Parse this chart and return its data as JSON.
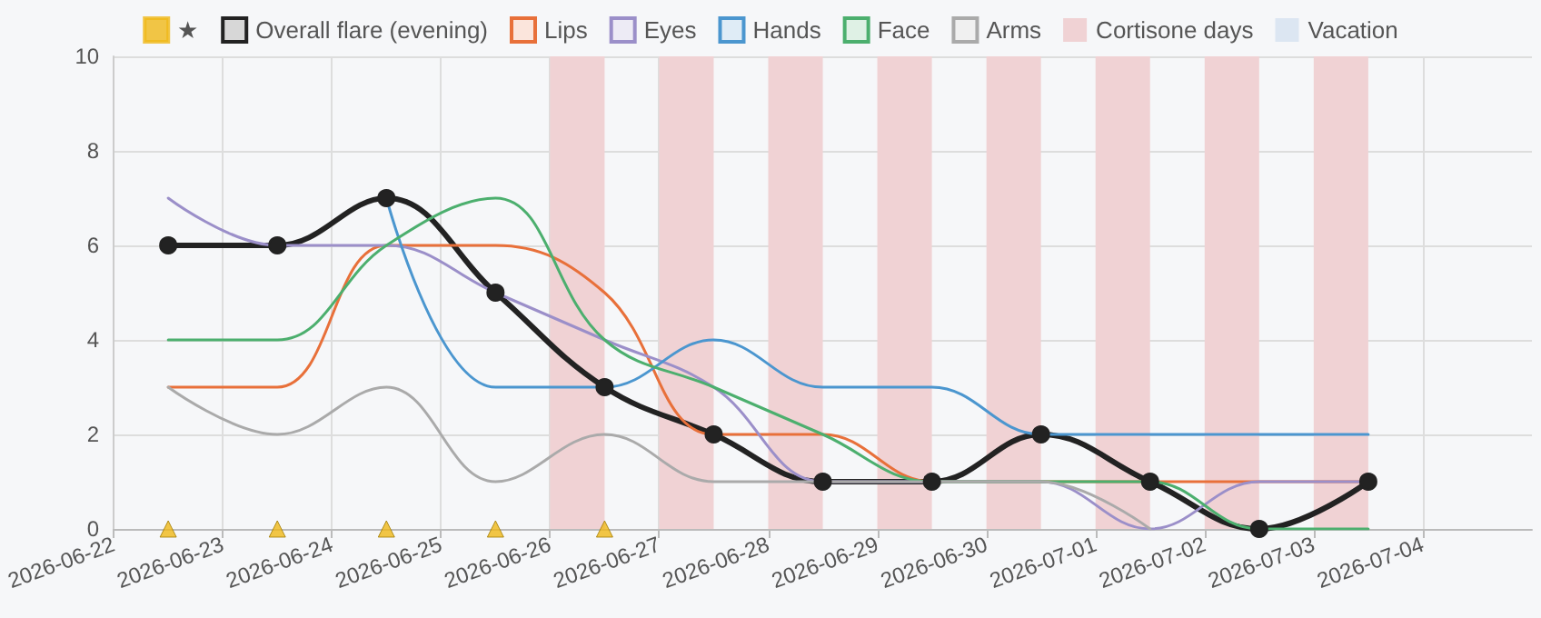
{
  "chart_data": {
    "type": "line",
    "x": [
      "2026-06-22T12:00",
      "2026-06-23T12:00",
      "2026-06-24T12:00",
      "2026-06-25T12:00",
      "2026-06-26T12:00",
      "2026-06-27T12:00",
      "2026-06-28T12:00",
      "2026-06-29T12:00",
      "2026-06-30T12:00",
      "2026-07-01T12:00",
      "2026-07-02T12:00",
      "2026-07-03T12:00"
    ],
    "series": [
      {
        "name": "★",
        "type": "scatter",
        "marker": "triangle",
        "color": "#f0b818",
        "values": [
          0,
          0,
          0,
          0,
          0,
          null,
          null,
          null,
          null,
          null,
          null,
          null
        ]
      },
      {
        "name": "Overall flare (evening)",
        "color": "#222222",
        "marker": "circle",
        "values": [
          6,
          6,
          7,
          5,
          3,
          2,
          1,
          1,
          2,
          1,
          0,
          1
        ]
      },
      {
        "name": "Lips",
        "color": "#e8703a",
        "values": [
          3,
          3,
          6,
          6,
          5,
          2,
          2,
          1,
          1,
          1,
          1,
          1
        ]
      },
      {
        "name": "Eyes",
        "color": "#9b8fc9",
        "values": [
          7,
          6,
          6,
          5,
          4,
          3,
          1,
          1,
          1,
          0,
          1,
          1
        ]
      },
      {
        "name": "Hands",
        "color": "#4b96cf",
        "values": [
          null,
          null,
          7,
          3,
          3,
          4,
          3,
          3,
          2,
          2,
          2,
          2
        ]
      },
      {
        "name": "Face",
        "color": "#4caf6e",
        "values": [
          4,
          4,
          6,
          7,
          4,
          3,
          2,
          1,
          1,
          1,
          0,
          0
        ]
      },
      {
        "name": "Arms",
        "color": "#aaaaaa",
        "values": [
          3,
          2,
          3,
          1,
          2,
          1,
          1,
          1,
          1,
          0,
          null,
          null
        ]
      },
      {
        "name": "Vacation",
        "type": "area",
        "color": "#dce6f2",
        "values": [
          null,
          null,
          null,
          null,
          null,
          null,
          null,
          null,
          null,
          null,
          null,
          null
        ]
      }
    ],
    "bands": [
      {
        "axis": "x",
        "from": "2026-06-26",
        "to": "2026-06-26T12:00",
        "label": "Cortisone days",
        "color": "#f0d2d4"
      },
      {
        "axis": "x",
        "from": "2026-06-27",
        "to": "2026-06-27T12:00",
        "color": "#f0d2d4"
      },
      {
        "axis": "x",
        "from": "2026-06-28",
        "to": "2026-06-28T12:00",
        "color": "#f0d2d4"
      },
      {
        "axis": "x",
        "from": "2026-06-29",
        "to": "2026-06-29T12:00",
        "color": "#f0d2d4"
      },
      {
        "axis": "x",
        "from": "2026-06-30",
        "to": "2026-06-30T12:00",
        "color": "#f0d2d4"
      },
      {
        "axis": "x",
        "from": "2026-07-01",
        "to": "2026-07-01T12:00",
        "color": "#f0d2d4"
      },
      {
        "axis": "x",
        "from": "2026-07-02",
        "to": "2026-07-02T12:00",
        "color": "#f0d2d4"
      },
      {
        "axis": "x",
        "from": "2026-07-03",
        "to": "2026-07-03T12:00",
        "color": "#f0d2d4"
      }
    ],
    "xlim": [
      "2026-06-22",
      "2026-07-05"
    ],
    "xticks": [
      "2026-06-22",
      "2026-06-23",
      "2026-06-24",
      "2026-06-25",
      "2026-06-26",
      "2026-06-27",
      "2026-06-28",
      "2026-06-29",
      "2026-06-30",
      "2026-07-01",
      "2026-07-02",
      "2026-07-03",
      "2026-07-04"
    ],
    "ylim": [
      0,
      10
    ],
    "yticks": [
      0,
      2,
      4,
      6,
      8,
      10
    ],
    "grid": true,
    "legend": "top",
    "line_style": "solid"
  }
}
